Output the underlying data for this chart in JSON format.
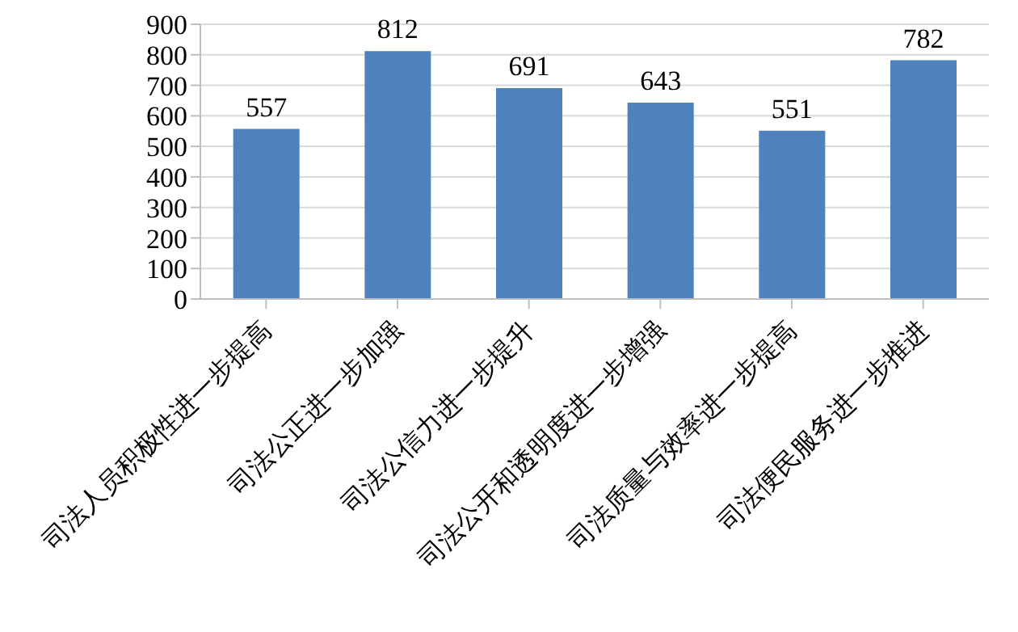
{
  "chart_data": {
    "type": "bar",
    "categories": [
      "司法人员积极性进一步提高",
      "司法公正进一步加强",
      "司法公信力进一步提升",
      "司法公开和透明度进一步增强",
      "司法质量与效率进一步提高",
      "司法便民服务进一步推进"
    ],
    "values": [
      557,
      812,
      691,
      643,
      551,
      782
    ],
    "color": "#4f81bd",
    "ylim": [
      0,
      900
    ],
    "yticks": [
      0,
      100,
      200,
      300,
      400,
      500,
      600,
      700,
      800,
      900
    ],
    "grid": "y",
    "data_labels": true
  }
}
